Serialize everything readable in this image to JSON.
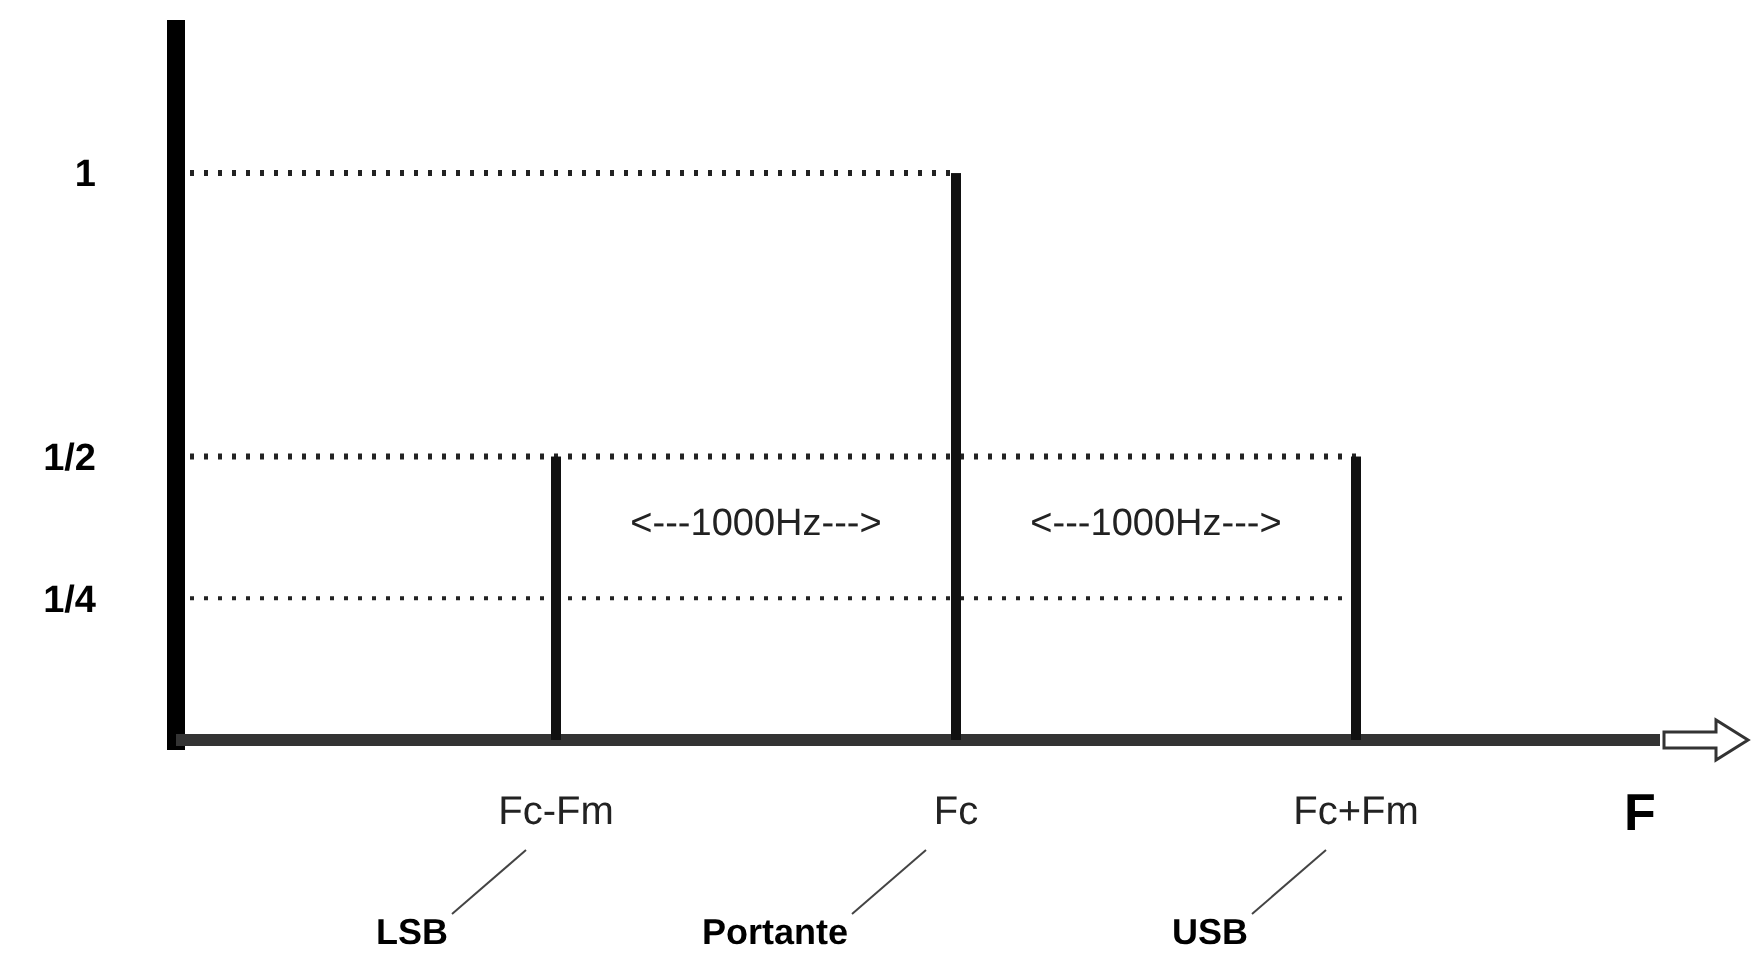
{
  "chart_data": {
    "type": "bar",
    "categories": [
      "Fc-Fm",
      "Fc",
      "Fc+Fm"
    ],
    "values": [
      0.5,
      1,
      0.5
    ],
    "color": "#111111",
    "xlabel": "F",
    "ylim": [
      0,
      1.27
    ],
    "yticks": [
      {
        "value": 0.25,
        "label": "1/4"
      },
      {
        "value": 0.5,
        "label": "1/2"
      },
      {
        "value": 1,
        "label": "1"
      }
    ],
    "ref_lines": [
      {
        "axis": "y",
        "value": 1,
        "line_style": "dotted"
      },
      {
        "axis": "y",
        "value": 0.5,
        "line_style": "dotted"
      },
      {
        "axis": "y",
        "value": 0.25,
        "line_style": "dotted"
      }
    ],
    "annotations": [
      "<---1000Hz--->",
      "<---1000Hz--->",
      "LSB",
      "Portante",
      "USB"
    ]
  }
}
